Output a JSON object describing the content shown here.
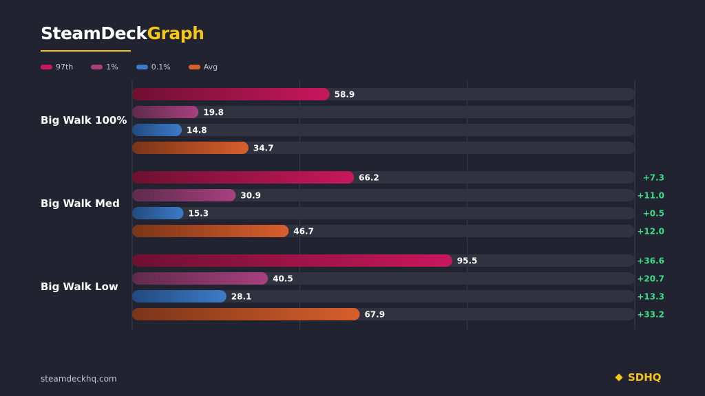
{
  "header": {
    "title_part1": "SteamDeck",
    "title_part2": "Graph"
  },
  "legend": [
    {
      "label": "97th",
      "color": "#c8175c"
    },
    {
      "label": "1%",
      "color": "#a8407f"
    },
    {
      "label": "0.1%",
      "color": "#3d7bc8"
    },
    {
      "label": "Avg",
      "color": "#d85f2c"
    }
  ],
  "chart_data": {
    "type": "bar",
    "orientation": "horizontal",
    "title": "",
    "xlabel": "",
    "ylabel": "",
    "xlim": [
      0,
      150
    ],
    "grid": true,
    "legend_position": "top-left",
    "categories": [
      "Big Walk 100%",
      "Big Walk Med",
      "Big Walk Low"
    ],
    "series": [
      {
        "name": "97th",
        "color": "#c8175c",
        "values": [
          58.9,
          66.2,
          95.5
        ],
        "deltas": [
          "",
          "+7.3",
          "+36.6"
        ]
      },
      {
        "name": "1%",
        "color": "#a8407f",
        "values": [
          19.8,
          30.9,
          40.5
        ],
        "deltas": [
          "",
          "+11.0",
          "+20.7"
        ]
      },
      {
        "name": "0.1%",
        "color": "#3d7bc8",
        "values": [
          14.8,
          15.3,
          28.1
        ],
        "deltas": [
          "",
          "+0.5",
          "+13.3"
        ]
      },
      {
        "name": "Avg",
        "color": "#d85f2c",
        "values": [
          34.7,
          46.7,
          67.9
        ],
        "deltas": [
          "",
          "+12.0",
          "+33.2"
        ]
      }
    ],
    "delta_color": "#3ddc84"
  },
  "footer": {
    "website": "steamdeckhq.com",
    "brand": "SDHQ"
  }
}
